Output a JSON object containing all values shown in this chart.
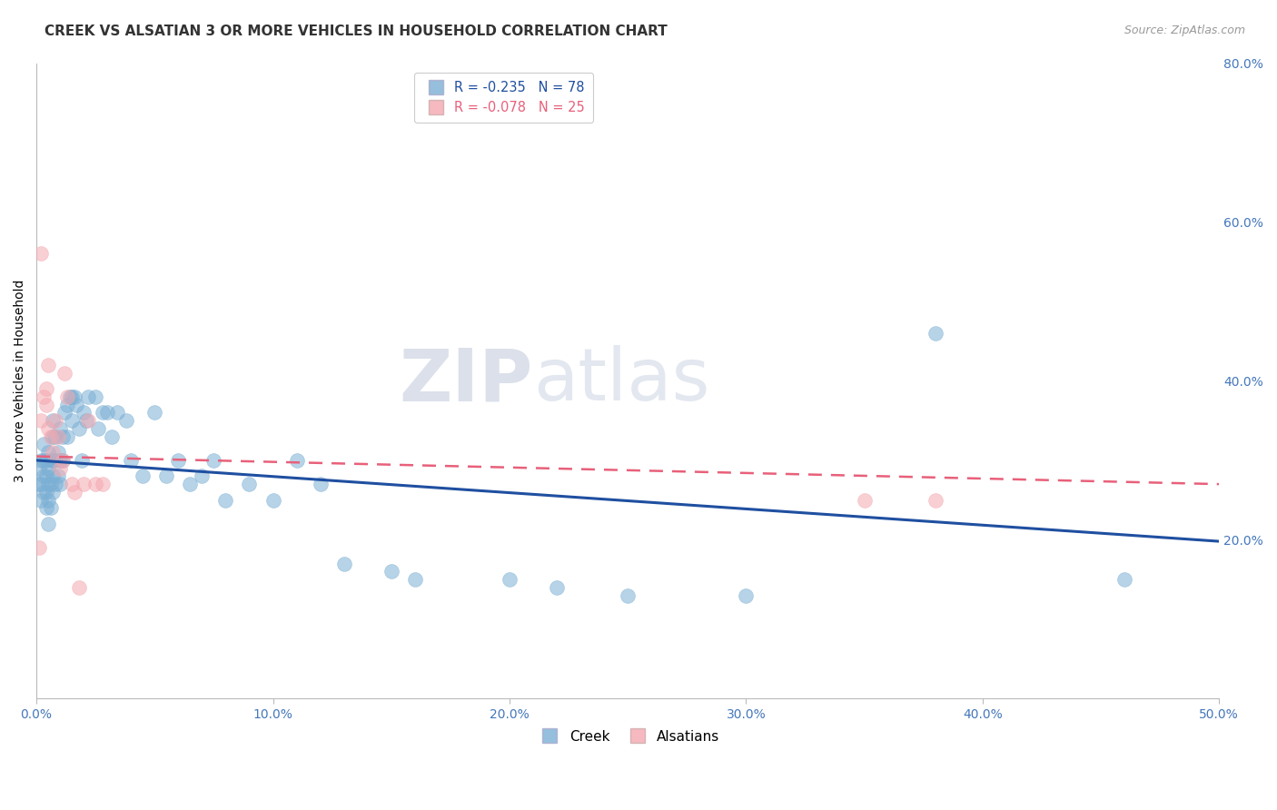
{
  "title": "CREEK VS ALSATIAN 3 OR MORE VEHICLES IN HOUSEHOLD CORRELATION CHART",
  "source": "Source: ZipAtlas.com",
  "ylabel": "3 or more Vehicles in Household",
  "watermark_zip": "ZIP",
  "watermark_atlas": "atlas",
  "legend_creek_r": "R = -0.235",
  "legend_creek_n": "N = 78",
  "legend_alsatian_r": "R = -0.078",
  "legend_alsatian_n": "N = 25",
  "creek_color": "#7BAFD4",
  "alsatian_color": "#F4A8B0",
  "trend_creek_color": "#1F4FA0",
  "trend_alsatian_color": "#E8607A",
  "xlim": [
    0.0,
    0.5
  ],
  "ylim": [
    0.0,
    0.8
  ],
  "right_yticks": [
    0.2,
    0.4,
    0.6,
    0.8
  ],
  "xticks": [
    0.0,
    0.1,
    0.2,
    0.3,
    0.4,
    0.5
  ],
  "creek_x": [
    0.001,
    0.001,
    0.002,
    0.002,
    0.002,
    0.003,
    0.003,
    0.003,
    0.003,
    0.004,
    0.004,
    0.004,
    0.004,
    0.005,
    0.005,
    0.005,
    0.005,
    0.005,
    0.006,
    0.006,
    0.006,
    0.007,
    0.007,
    0.007,
    0.007,
    0.007,
    0.008,
    0.008,
    0.008,
    0.009,
    0.009,
    0.01,
    0.01,
    0.01,
    0.011,
    0.011,
    0.012,
    0.013,
    0.013,
    0.014,
    0.015,
    0.015,
    0.016,
    0.017,
    0.018,
    0.019,
    0.02,
    0.021,
    0.022,
    0.025,
    0.026,
    0.028,
    0.03,
    0.032,
    0.034,
    0.038,
    0.04,
    0.045,
    0.05,
    0.055,
    0.06,
    0.065,
    0.07,
    0.075,
    0.08,
    0.09,
    0.1,
    0.11,
    0.12,
    0.13,
    0.15,
    0.16,
    0.2,
    0.22,
    0.25,
    0.3,
    0.38,
    0.46
  ],
  "creek_y": [
    0.27,
    0.29,
    0.25,
    0.27,
    0.3,
    0.26,
    0.28,
    0.3,
    0.32,
    0.24,
    0.26,
    0.28,
    0.3,
    0.22,
    0.25,
    0.27,
    0.29,
    0.31,
    0.24,
    0.27,
    0.3,
    0.26,
    0.28,
    0.3,
    0.33,
    0.35,
    0.27,
    0.3,
    0.33,
    0.28,
    0.31,
    0.27,
    0.3,
    0.34,
    0.3,
    0.33,
    0.36,
    0.33,
    0.37,
    0.38,
    0.35,
    0.38,
    0.38,
    0.37,
    0.34,
    0.3,
    0.36,
    0.35,
    0.38,
    0.38,
    0.34,
    0.36,
    0.36,
    0.33,
    0.36,
    0.35,
    0.3,
    0.28,
    0.36,
    0.28,
    0.3,
    0.27,
    0.28,
    0.3,
    0.25,
    0.27,
    0.25,
    0.3,
    0.27,
    0.17,
    0.16,
    0.15,
    0.15,
    0.14,
    0.13,
    0.13,
    0.46,
    0.15
  ],
  "alsatian_x": [
    0.001,
    0.002,
    0.002,
    0.003,
    0.004,
    0.004,
    0.005,
    0.005,
    0.006,
    0.007,
    0.008,
    0.009,
    0.01,
    0.011,
    0.012,
    0.013,
    0.015,
    0.016,
    0.018,
    0.02,
    0.022,
    0.025,
    0.028,
    0.35,
    0.38
  ],
  "alsatian_y": [
    0.19,
    0.35,
    0.56,
    0.38,
    0.37,
    0.39,
    0.34,
    0.42,
    0.33,
    0.31,
    0.35,
    0.33,
    0.29,
    0.3,
    0.41,
    0.38,
    0.27,
    0.26,
    0.14,
    0.27,
    0.35,
    0.27,
    0.27,
    0.25,
    0.25
  ],
  "creek_trend_x": [
    0.0,
    0.5
  ],
  "creek_trend_y": [
    0.3,
    0.198
  ],
  "alsatian_trend_x": [
    0.0,
    0.5
  ],
  "alsatian_trend_y": [
    0.305,
    0.27
  ],
  "title_fontsize": 11,
  "source_fontsize": 9,
  "tick_color": "#4477BB",
  "grid_color": "#BBBBCC",
  "background_color": "#FFFFFF"
}
